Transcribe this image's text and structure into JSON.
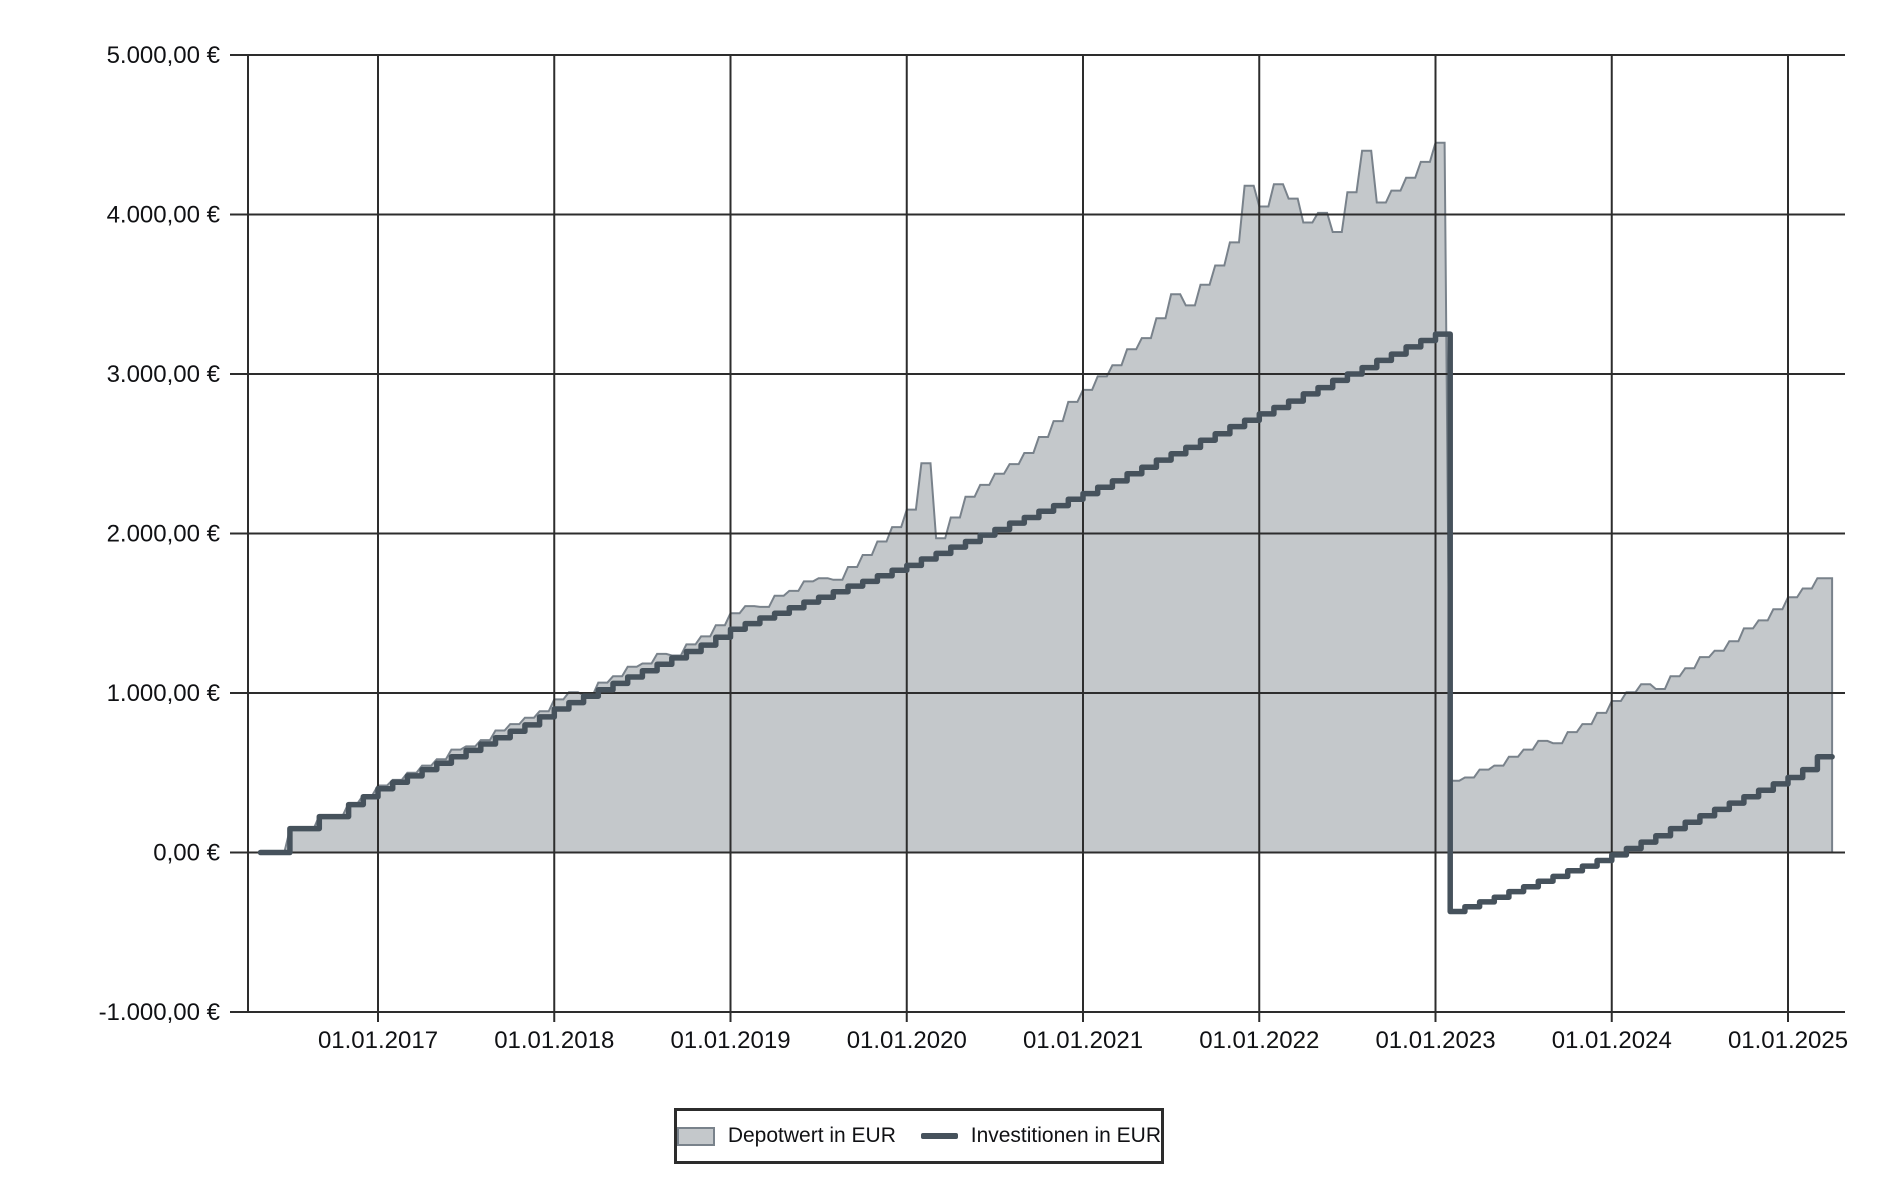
{
  "chart_data": {
    "type": "area",
    "title": "",
    "currency": "EUR",
    "grid": true,
    "legend_position": "bottom-center",
    "ylim": [
      -1000,
      5000
    ],
    "x_months": [
      "2016-05",
      "2016-06",
      "2016-07",
      "2016-08",
      "2016-09",
      "2016-10",
      "2016-11",
      "2016-12",
      "2017-01",
      "2017-02",
      "2017-03",
      "2017-04",
      "2017-05",
      "2017-06",
      "2017-07",
      "2017-08",
      "2017-09",
      "2017-10",
      "2017-11",
      "2017-12",
      "2018-01",
      "2018-02",
      "2018-03",
      "2018-04",
      "2018-05",
      "2018-06",
      "2018-07",
      "2018-08",
      "2018-09",
      "2018-10",
      "2018-11",
      "2018-12",
      "2019-01",
      "2019-02",
      "2019-03",
      "2019-04",
      "2019-05",
      "2019-06",
      "2019-07",
      "2019-08",
      "2019-09",
      "2019-10",
      "2019-11",
      "2019-12",
      "2020-01",
      "2020-02",
      "2020-03",
      "2020-04",
      "2020-05",
      "2020-06",
      "2020-07",
      "2020-08",
      "2020-09",
      "2020-10",
      "2020-11",
      "2020-12",
      "2021-01",
      "2021-02",
      "2021-03",
      "2021-04",
      "2021-05",
      "2021-06",
      "2021-07",
      "2021-08",
      "2021-09",
      "2021-10",
      "2021-11",
      "2021-12",
      "2022-01",
      "2022-02",
      "2022-03",
      "2022-04",
      "2022-05",
      "2022-06",
      "2022-07",
      "2022-08",
      "2022-09",
      "2022-10",
      "2022-11",
      "2022-12",
      "2023-01",
      "2023-02",
      "2023-03",
      "2023-04",
      "2023-05",
      "2023-06",
      "2023-07",
      "2023-08",
      "2023-09",
      "2023-10",
      "2023-11",
      "2023-12",
      "2024-01",
      "2024-02",
      "2024-03",
      "2024-04",
      "2024-05",
      "2024-06",
      "2024-07",
      "2024-08",
      "2024-09",
      "2024-10",
      "2024-11",
      "2024-12",
      "2025-01",
      "2025-02",
      "2025-03"
    ],
    "series": [
      {
        "name": "Depotwert in EUR",
        "type": "area",
        "fill_color": "#c4c8cb",
        "border_color": "#79828b",
        "values": [
          0,
          0,
          145,
          150,
          230,
          235,
          310,
          360,
          420,
          455,
          500,
          545,
          585,
          645,
          665,
          705,
          765,
          805,
          845,
          885,
          960,
          1005,
          985,
          1065,
          1105,
          1165,
          1185,
          1245,
          1235,
          1305,
          1355,
          1425,
          1500,
          1545,
          1540,
          1610,
          1640,
          1700,
          1720,
          1710,
          1790,
          1865,
          1950,
          2040,
          2150,
          2440,
          1970,
          2100,
          2230,
          2305,
          2375,
          2435,
          2505,
          2605,
          2705,
          2825,
          2900,
          2985,
          3055,
          3155,
          3225,
          3350,
          3500,
          3430,
          3560,
          3680,
          3825,
          4180,
          4050,
          4190,
          4100,
          3950,
          4010,
          3890,
          4140,
          4400,
          4075,
          4150,
          4230,
          4330,
          4450,
          450,
          470,
          520,
          545,
          600,
          645,
          700,
          685,
          755,
          805,
          875,
          950,
          1005,
          1055,
          1025,
          1105,
          1155,
          1225,
          1265,
          1325,
          1405,
          1455,
          1525,
          1600,
          1655,
          1720
        ]
      },
      {
        "name": "Investitionen in EUR",
        "type": "step-line",
        "line_color": "#46525c",
        "values": [
          0,
          0,
          150,
          150,
          225,
          225,
          300,
          350,
          400,
          440,
          480,
          520,
          560,
          600,
          640,
          680,
          720,
          760,
          800,
          850,
          900,
          940,
          980,
          1020,
          1060,
          1100,
          1140,
          1180,
          1220,
          1260,
          1300,
          1350,
          1400,
          1435,
          1470,
          1500,
          1535,
          1570,
          1600,
          1635,
          1670,
          1700,
          1735,
          1770,
          1800,
          1840,
          1875,
          1915,
          1950,
          1990,
          2025,
          2065,
          2100,
          2140,
          2175,
          2215,
          2250,
          2290,
          2330,
          2375,
          2415,
          2460,
          2500,
          2540,
          2585,
          2625,
          2670,
          2710,
          2750,
          2790,
          2830,
          2875,
          2915,
          2960,
          3000,
          3040,
          3085,
          3125,
          3170,
          3210,
          3250,
          -370,
          -340,
          -310,
          -280,
          -245,
          -215,
          -180,
          -150,
          -115,
          -85,
          -50,
          -15,
          25,
          65,
          105,
          150,
          190,
          230,
          270,
          310,
          350,
          390,
          430,
          470,
          520,
          600
        ]
      }
    ],
    "y_axis": {
      "tick_values": [
        5000,
        4000,
        3000,
        2000,
        1000,
        0,
        -1000
      ],
      "tick_labels": [
        "5.000,00 €",
        "4.000,00 €",
        "3.000,00 €",
        "2.000,00 €",
        "1.000,00 €",
        "0,00 €",
        "-1.000,00 €"
      ]
    },
    "x_axis": {
      "tick_labels": [
        "01.01.2017",
        "01.01.2018",
        "01.01.2019",
        "01.01.2020",
        "01.01.2021",
        "01.01.2022",
        "01.01.2023",
        "01.01.2024",
        "01.01.2025"
      ]
    }
  },
  "legend": {
    "depotwert_label": "Depotwert in EUR",
    "investitionen_label": "Investitionen in EUR"
  },
  "colors": {
    "area_fill": "#c4c8cb",
    "area_border": "#79828b",
    "line": "#46525c",
    "grid": "#2d2d2d",
    "text": "#101114",
    "background": "#ffffff"
  }
}
